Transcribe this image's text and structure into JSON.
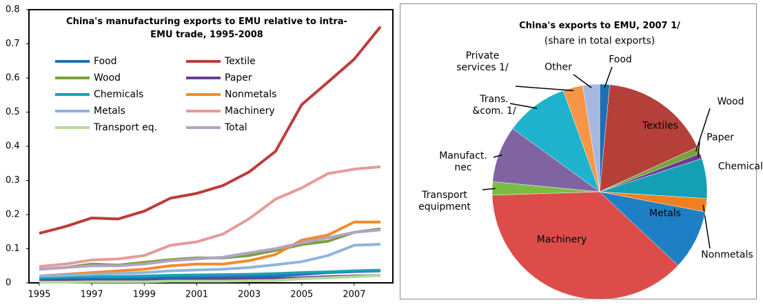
{
  "chart_data": [
    {
      "type": "line",
      "title": "China's manufacturing exports to EMU relative to intra-EMU trade, 1995-2008",
      "x": [
        1995,
        1996,
        1997,
        1998,
        1999,
        2000,
        2001,
        2002,
        2003,
        2004,
        2005,
        2006,
        2007,
        2008
      ],
      "xlim": [
        1995,
        2008
      ],
      "xticks": [
        1995,
        1997,
        1999,
        2001,
        2003,
        2005,
        2007
      ],
      "ylim": [
        0,
        0.8
      ],
      "yticks": [
        0,
        0.1,
        0.2,
        0.3,
        0.4,
        0.5,
        0.6,
        0.7,
        0.8
      ],
      "series": [
        {
          "name": "Food",
          "color": "#1f6fb4",
          "values": [
            0.01,
            0.011,
            0.012,
            0.012,
            0.013,
            0.015,
            0.016,
            0.017,
            0.018,
            0.02,
            0.025,
            0.03,
            0.033,
            0.035
          ]
        },
        {
          "name": "Textile",
          "color": "#be3b37",
          "values": [
            0.145,
            0.165,
            0.19,
            0.187,
            0.21,
            0.248,
            0.262,
            0.285,
            0.325,
            0.385,
            0.522,
            0.588,
            0.655,
            0.75
          ]
        },
        {
          "name": "Wood",
          "color": "#77a33a",
          "values": [
            0.04,
            0.045,
            0.055,
            0.052,
            0.06,
            0.068,
            0.073,
            0.073,
            0.08,
            0.095,
            0.112,
            0.122,
            0.148,
            0.158
          ]
        },
        {
          "name": "Paper",
          "color": "#6a3d8f",
          "values": [
            0.005,
            0.005,
            0.006,
            0.006,
            0.007,
            0.008,
            0.009,
            0.01,
            0.011,
            0.012,
            0.015,
            0.018,
            0.02,
            0.022
          ]
        },
        {
          "name": "Chemicals",
          "color": "#1aa0b8",
          "values": [
            0.015,
            0.017,
            0.018,
            0.018,
            0.02,
            0.022,
            0.023,
            0.024,
            0.025,
            0.027,
            0.03,
            0.032,
            0.035,
            0.037
          ]
        },
        {
          "name": "Nonmetals",
          "color": "#f28b2a",
          "values": [
            0.02,
            0.025,
            0.03,
            0.035,
            0.04,
            0.05,
            0.055,
            0.055,
            0.065,
            0.083,
            0.125,
            0.14,
            0.178,
            0.178
          ]
        },
        {
          "name": "Metals",
          "color": "#8fb4dc",
          "values": [
            0.02,
            0.022,
            0.025,
            0.027,
            0.03,
            0.035,
            0.038,
            0.04,
            0.045,
            0.053,
            0.062,
            0.08,
            0.11,
            0.113
          ]
        },
        {
          "name": "Machinery",
          "color": "#e89a9a",
          "values": [
            0.048,
            0.055,
            0.067,
            0.07,
            0.08,
            0.11,
            0.12,
            0.143,
            0.188,
            0.245,
            0.278,
            0.32,
            0.333,
            0.34
          ]
        },
        {
          "name": "Transport eq.",
          "color": "#b5d99c",
          "values": [
            0.002,
            0.002,
            0.003,
            0.003,
            0.003,
            0.005,
            0.005,
            0.005,
            0.006,
            0.007,
            0.012,
            0.015,
            0.018,
            0.022
          ]
        },
        {
          "name": "Total",
          "color": "#b3a2c8",
          "values": [
            0.04,
            0.045,
            0.05,
            0.05,
            0.055,
            0.065,
            0.07,
            0.075,
            0.088,
            0.1,
            0.117,
            0.132,
            0.148,
            0.155
          ]
        }
      ]
    },
    {
      "type": "pie",
      "title": "China's exports to EMU, 2007 1/",
      "subtitle": "(share in total exports)",
      "categories": [
        "Food",
        "Textiles",
        "Wood",
        "Paper",
        "Chemicals",
        "Nonmetals",
        "Metals",
        "Machinery",
        "Transport equipment",
        "Manufact. nec",
        "Trans. &com. 1/",
        "Private services 1/",
        "Other"
      ],
      "values": [
        1.5,
        16.7,
        1,
        0.8,
        6,
        2,
        9,
        37.5,
        2,
        8.5,
        9.5,
        3,
        2.5
      ],
      "colors": [
        "#1f6fb4",
        "#b5403a",
        "#77a33a",
        "#6a3d8f",
        "#14a0b4",
        "#f07f22",
        "#1f7fc4",
        "#dc4d4a",
        "#7cbc43",
        "#8064a2",
        "#1fb2cc",
        "#f79646",
        "#a6b8de"
      ]
    }
  ]
}
